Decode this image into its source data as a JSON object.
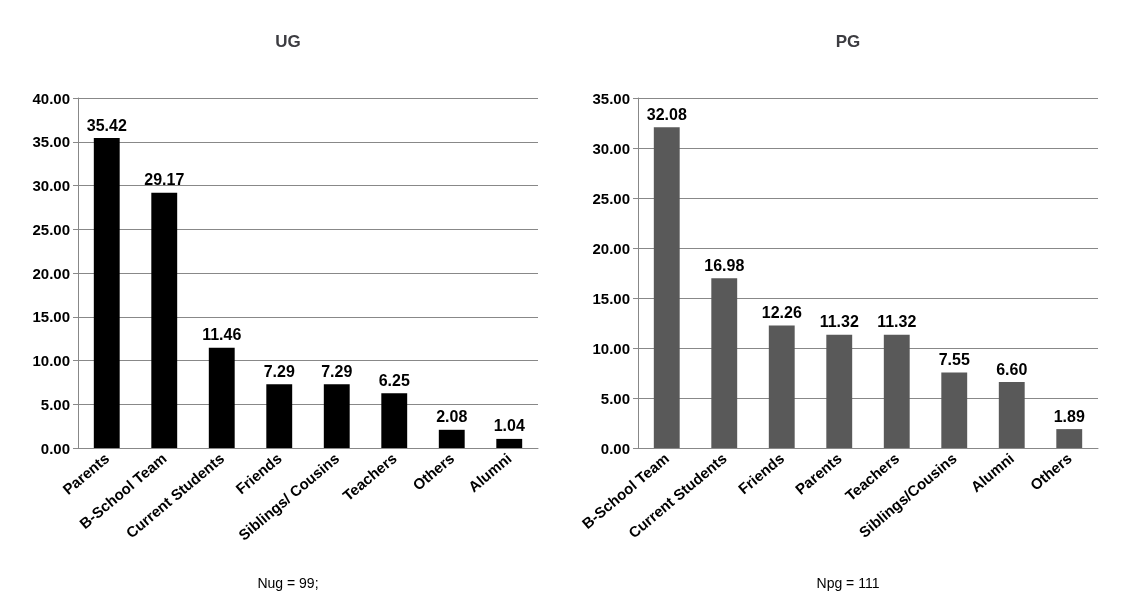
{
  "chart_data": [
    {
      "type": "bar",
      "title": "UG",
      "categories": [
        "Parents",
        "B-School Team",
        "Current Students",
        "Friends",
        "Siblings/ Cousins",
        "Teachers",
        "Others",
        "Alumni"
      ],
      "values": [
        35.42,
        29.17,
        11.46,
        7.29,
        7.29,
        6.25,
        2.08,
        1.04
      ],
      "value_labels": [
        "35.42",
        "29.17",
        "11.46",
        "7.29",
        "7.29",
        "6.25",
        "2.08",
        "1.04"
      ],
      "color": "#000000",
      "ylim": [
        0,
        40
      ],
      "yticks": [
        {
          "value": 0,
          "label": "0.00"
        },
        {
          "value": 5,
          "label": "5.00"
        },
        {
          "value": 10,
          "label": "10.00"
        },
        {
          "value": 15,
          "label": "15.00"
        },
        {
          "value": 20,
          "label": "20.00"
        },
        {
          "value": 25,
          "label": "25.00"
        },
        {
          "value": 30,
          "label": "30.00"
        },
        {
          "value": 35,
          "label": "35.00"
        },
        {
          "value": 40,
          "label": "40.00"
        }
      ],
      "grid": "y",
      "annotations": [
        "Nug = 99;"
      ]
    },
    {
      "type": "bar",
      "title": "PG",
      "categories": [
        "B-School Team",
        "Current Students",
        "Friends",
        "Parents",
        "Teachers",
        "Siblings/Cousins",
        "Alumni",
        "Others"
      ],
      "values": [
        32.08,
        16.98,
        12.26,
        11.32,
        11.32,
        7.55,
        6.6,
        1.89
      ],
      "value_labels": [
        "32.08",
        "16.98",
        "12.26",
        "11.32",
        "11.32",
        "7.55",
        "6.60",
        "1.89"
      ],
      "color": "#595959",
      "ylim": [
        0,
        35
      ],
      "yticks": [
        {
          "value": 0,
          "label": "0.00"
        },
        {
          "value": 5,
          "label": "5.00"
        },
        {
          "value": 10,
          "label": "10.00"
        },
        {
          "value": 15,
          "label": "15.00"
        },
        {
          "value": 20,
          "label": "20.00"
        },
        {
          "value": 25,
          "label": "25.00"
        },
        {
          "value": 30,
          "label": "30.00"
        },
        {
          "value": 35,
          "label": "35.00"
        }
      ],
      "grid": "y",
      "annotations": [
        "Npg = 111"
      ]
    }
  ]
}
